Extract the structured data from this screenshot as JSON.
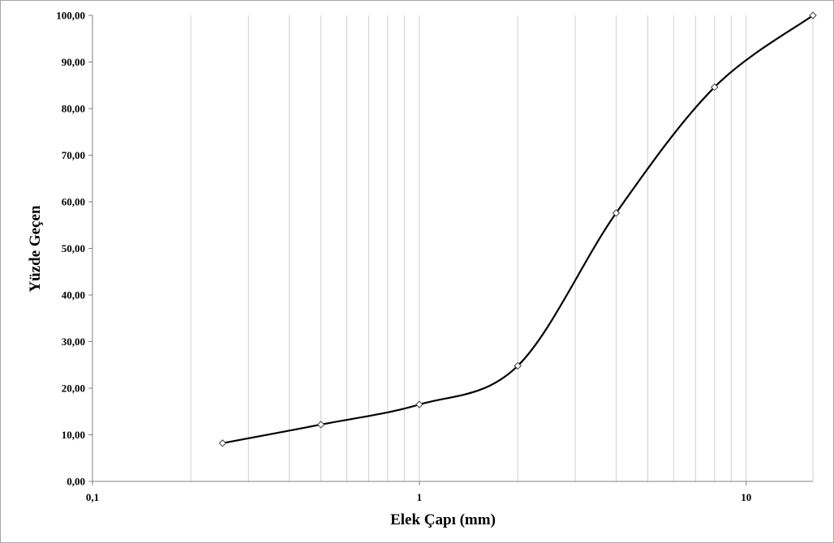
{
  "chart_data": {
    "type": "line",
    "title": "",
    "xlabel": "Elek Çapı (mm)",
    "ylabel": "Yüzde Geçen",
    "x_scale": "log",
    "xlim": [
      0.1,
      16
    ],
    "ylim": [
      0,
      100
    ],
    "x_ticks": [
      {
        "value": 0.1,
        "label": "0,1"
      },
      {
        "value": 1,
        "label": "1"
      },
      {
        "value": 10,
        "label": "10"
      }
    ],
    "y_ticks": [
      {
        "value": 0,
        "label": "0,00"
      },
      {
        "value": 10,
        "label": "10,00"
      },
      {
        "value": 20,
        "label": "20,00"
      },
      {
        "value": 30,
        "label": "30,00"
      },
      {
        "value": 40,
        "label": "40,00"
      },
      {
        "value": 50,
        "label": "50,00"
      },
      {
        "value": 60,
        "label": "60,00"
      },
      {
        "value": 70,
        "label": "70,00"
      },
      {
        "value": 80,
        "label": "80,00"
      },
      {
        "value": 90,
        "label": "90,00"
      },
      {
        "value": 100,
        "label": "100,00"
      }
    ],
    "x_gridlines": [
      0.2,
      0.3,
      0.4,
      0.5,
      0.6,
      0.7,
      0.8,
      0.9,
      1,
      2,
      3,
      4,
      5,
      6,
      7,
      8,
      9,
      10,
      16
    ],
    "grid": {
      "vertical": true,
      "horizontal": false
    },
    "series": [
      {
        "x": [
          0.25,
          0.5,
          1,
          2,
          4,
          8,
          16
        ],
        "y": [
          8.2,
          12.2,
          16.5,
          24.8,
          57.6,
          84.6,
          100.0
        ],
        "marker": "diamond",
        "color": "#000000",
        "smooth": true
      }
    ]
  }
}
